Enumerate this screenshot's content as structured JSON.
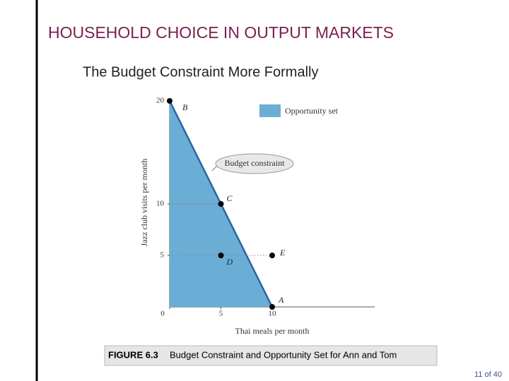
{
  "slide": {
    "title": "HOUSEHOLD CHOICE IN OUTPUT MARKETS",
    "subtitle": "The Budget Constraint More Formally",
    "caption_label": "FIGURE 6.3",
    "caption": "Budget Constraint and Opportunity Set for Ann and Tom",
    "page": "11 of 40"
  },
  "chart_data": {
    "type": "area",
    "x_label": "Thai meals per month",
    "y_label": "Jazz club visits per month",
    "xlim": [
      0,
      20
    ],
    "ylim": [
      0,
      20
    ],
    "xticks": [
      0,
      5,
      10
    ],
    "yticks": [
      5,
      10,
      20
    ],
    "series": [
      {
        "name": "Opportunity set",
        "color": "#6aaed6",
        "x": [
          0,
          10
        ],
        "values": [
          20,
          0
        ]
      }
    ],
    "line_color": "#2a64a8",
    "points": [
      {
        "label": "B",
        "x": 0,
        "y": 20
      },
      {
        "label": "C",
        "x": 5,
        "y": 10
      },
      {
        "label": "D",
        "x": 5,
        "y": 5
      },
      {
        "label": "E",
        "x": 10,
        "y": 5
      },
      {
        "label": "A",
        "x": 10,
        "y": 0
      }
    ],
    "annotation": "Budget constraint"
  }
}
